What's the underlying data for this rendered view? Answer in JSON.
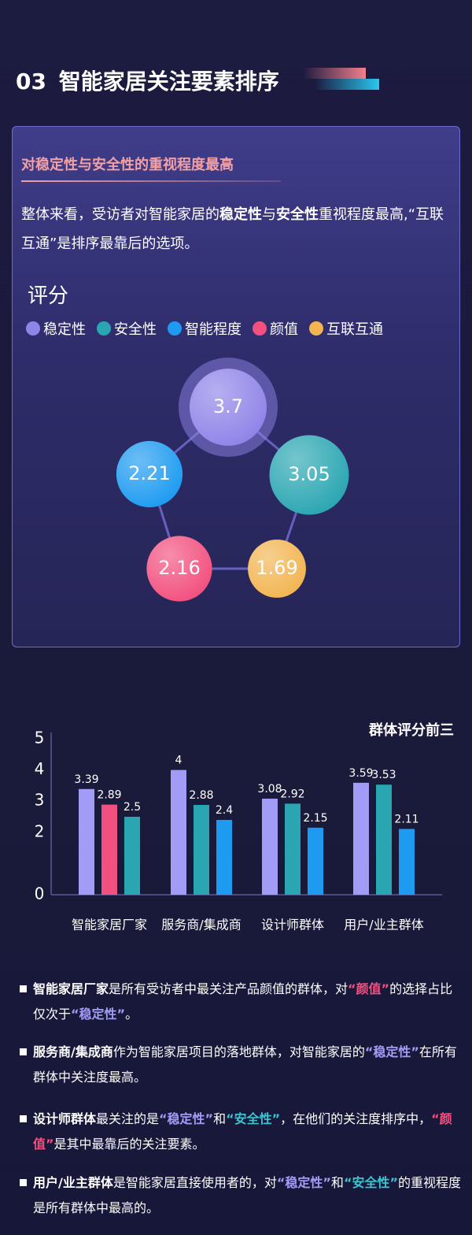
{
  "header": {
    "number": "03",
    "title": "智能家居关注要素排序"
  },
  "card": {
    "subtitle": "对稳定性与安全性的重视程度最高",
    "intro": [
      {
        "text": "整体来看，受访者对智能家居的",
        "style": "normal"
      },
      {
        "text": "稳定性",
        "style": "bold"
      },
      {
        "text": "与",
        "style": "normal"
      },
      {
        "text": "安全性",
        "style": "bold"
      },
      {
        "text": "重视程度最高,“互联互通”是排序最靠后的选项。",
        "style": "normal"
      }
    ]
  },
  "chart_data": [
    {
      "type": "bubble",
      "title": "评分",
      "categories": [
        "稳定性",
        "安全性",
        "智能程度",
        "颜值",
        "互联互通"
      ],
      "values": [
        3.7,
        3.05,
        2.21,
        2.16,
        1.69
      ],
      "colors": [
        "#8f84e8",
        "#2aa6b2",
        "#1e9bf0",
        "#f2507e",
        "#f2b552"
      ]
    },
    {
      "type": "bar",
      "title": "群体评分前三",
      "categories": [
        "智能家居厂家",
        "服务商/集成商",
        "设计师群体",
        "用户/业主群体"
      ],
      "series": [
        {
          "colors": [
            "#a39cf7",
            "#a39cf7",
            "#a39cf7",
            "#a39cf7"
          ],
          "values": [
            3.39,
            4,
            3.08,
            3.59
          ]
        },
        {
          "colors": [
            "#f2507e",
            "#2aa6b2",
            "#2aa6b2",
            "#2aa6b2"
          ],
          "values": [
            2.89,
            2.88,
            2.92,
            3.53
          ]
        },
        {
          "colors": [
            "#2aa6b2",
            "#1e9bf0",
            "#1e9bf0",
            "#1e9bf0"
          ],
          "values": [
            2.5,
            2.4,
            2.15,
            2.11
          ]
        }
      ],
      "ylim": [
        0,
        5
      ],
      "yticks": [
        0,
        2,
        3,
        4,
        5
      ]
    }
  ],
  "notes": [
    [
      {
        "text": "智能家居厂家",
        "style": "bold"
      },
      {
        "text": "是所有受访者中最关注产品颜值的群体，对",
        "style": "normal"
      },
      {
        "text": "“颜值”",
        "style": "pink"
      },
      {
        "text": "的选择占比仅次于",
        "style": "normal"
      },
      {
        "text": "“稳定性”",
        "style": "purple"
      },
      {
        "text": "。",
        "style": "normal"
      }
    ],
    [
      {
        "text": "服务商/集成商",
        "style": "bold"
      },
      {
        "text": "作为智能家居项目的落地群体，对智能家居的",
        "style": "normal"
      },
      {
        "text": "“稳定性”",
        "style": "purple"
      },
      {
        "text": "在所有群体中关注度最高。",
        "style": "normal"
      }
    ],
    [
      {
        "text": "设计师群体",
        "style": "bold"
      },
      {
        "text": "最关注的是",
        "style": "normal"
      },
      {
        "text": "“稳定性”",
        "style": "purple"
      },
      {
        "text": "和",
        "style": "normal"
      },
      {
        "text": "“安全性”",
        "style": "teal"
      },
      {
        "text": "，在他们的关注度排序中，",
        "style": "normal"
      },
      {
        "text": "“颜值”",
        "style": "pink"
      },
      {
        "text": "是其中最靠后的关注要素。",
        "style": "normal"
      }
    ],
    [
      {
        "text": "用户/业主群体",
        "style": "bold"
      },
      {
        "text": "是智能家居直接使用者的，对",
        "style": "normal"
      },
      {
        "text": "“稳定性”",
        "style": "purple"
      },
      {
        "text": "和",
        "style": "normal"
      },
      {
        "text": "“安全性”",
        "style": "teal"
      },
      {
        "text": "的重视程度是所有群体中最高的。",
        "style": "normal"
      }
    ]
  ]
}
